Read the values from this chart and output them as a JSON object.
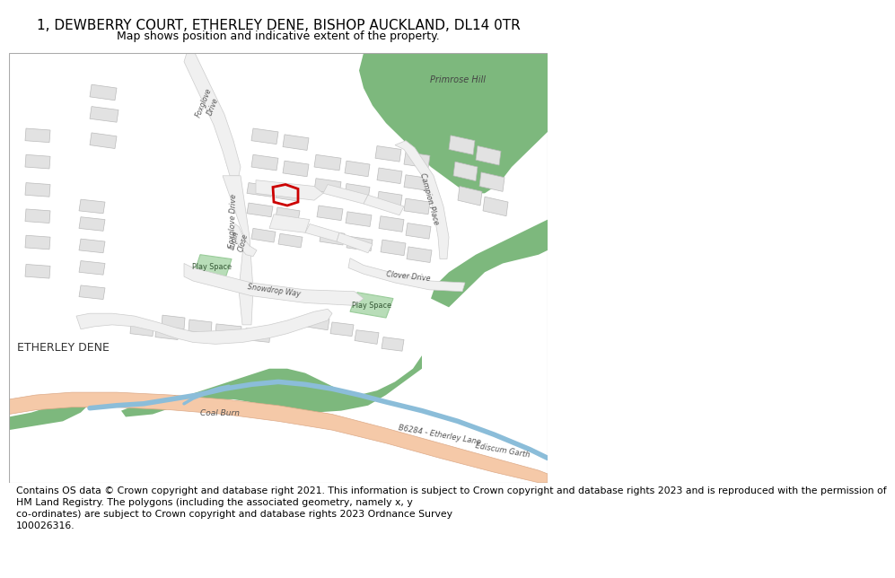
{
  "title": "1, DEWBERRY COURT, ETHERLEY DENE, BISHOP AUCKLAND, DL14 0TR",
  "subtitle": "Map shows position and indicative extent of the property.",
  "footer": "Contains OS data © Crown copyright and database right 2021. This information is subject to Crown copyright and database rights 2023 and is reproduced with the permission of\nHM Land Registry. The polygons (including the associated geometry, namely x, y\nco-ordinates) are subject to Crown copyright and database rights 2023 Ordnance Survey\n100026316.",
  "bg_color": "#ffffff",
  "road_main_color": "#f5c9a8",
  "road_main_edge": "#ddaa88",
  "street_color": "#f0f0f0",
  "street_edge": "#cccccc",
  "building_fill": "#e2e2e2",
  "building_edge": "#bbbbbb",
  "green_fill": "#7db87d",
  "green_light": "#b8ddb8",
  "water_color": "#8bbdd9",
  "plot_edge": "#cc0000",
  "text_dark": "#333333",
  "text_mid": "#666666",
  "title_fs": 11,
  "sub_fs": 9,
  "foot_fs": 7.8,
  "label_fs": 6.5,
  "small_fs": 6.0
}
